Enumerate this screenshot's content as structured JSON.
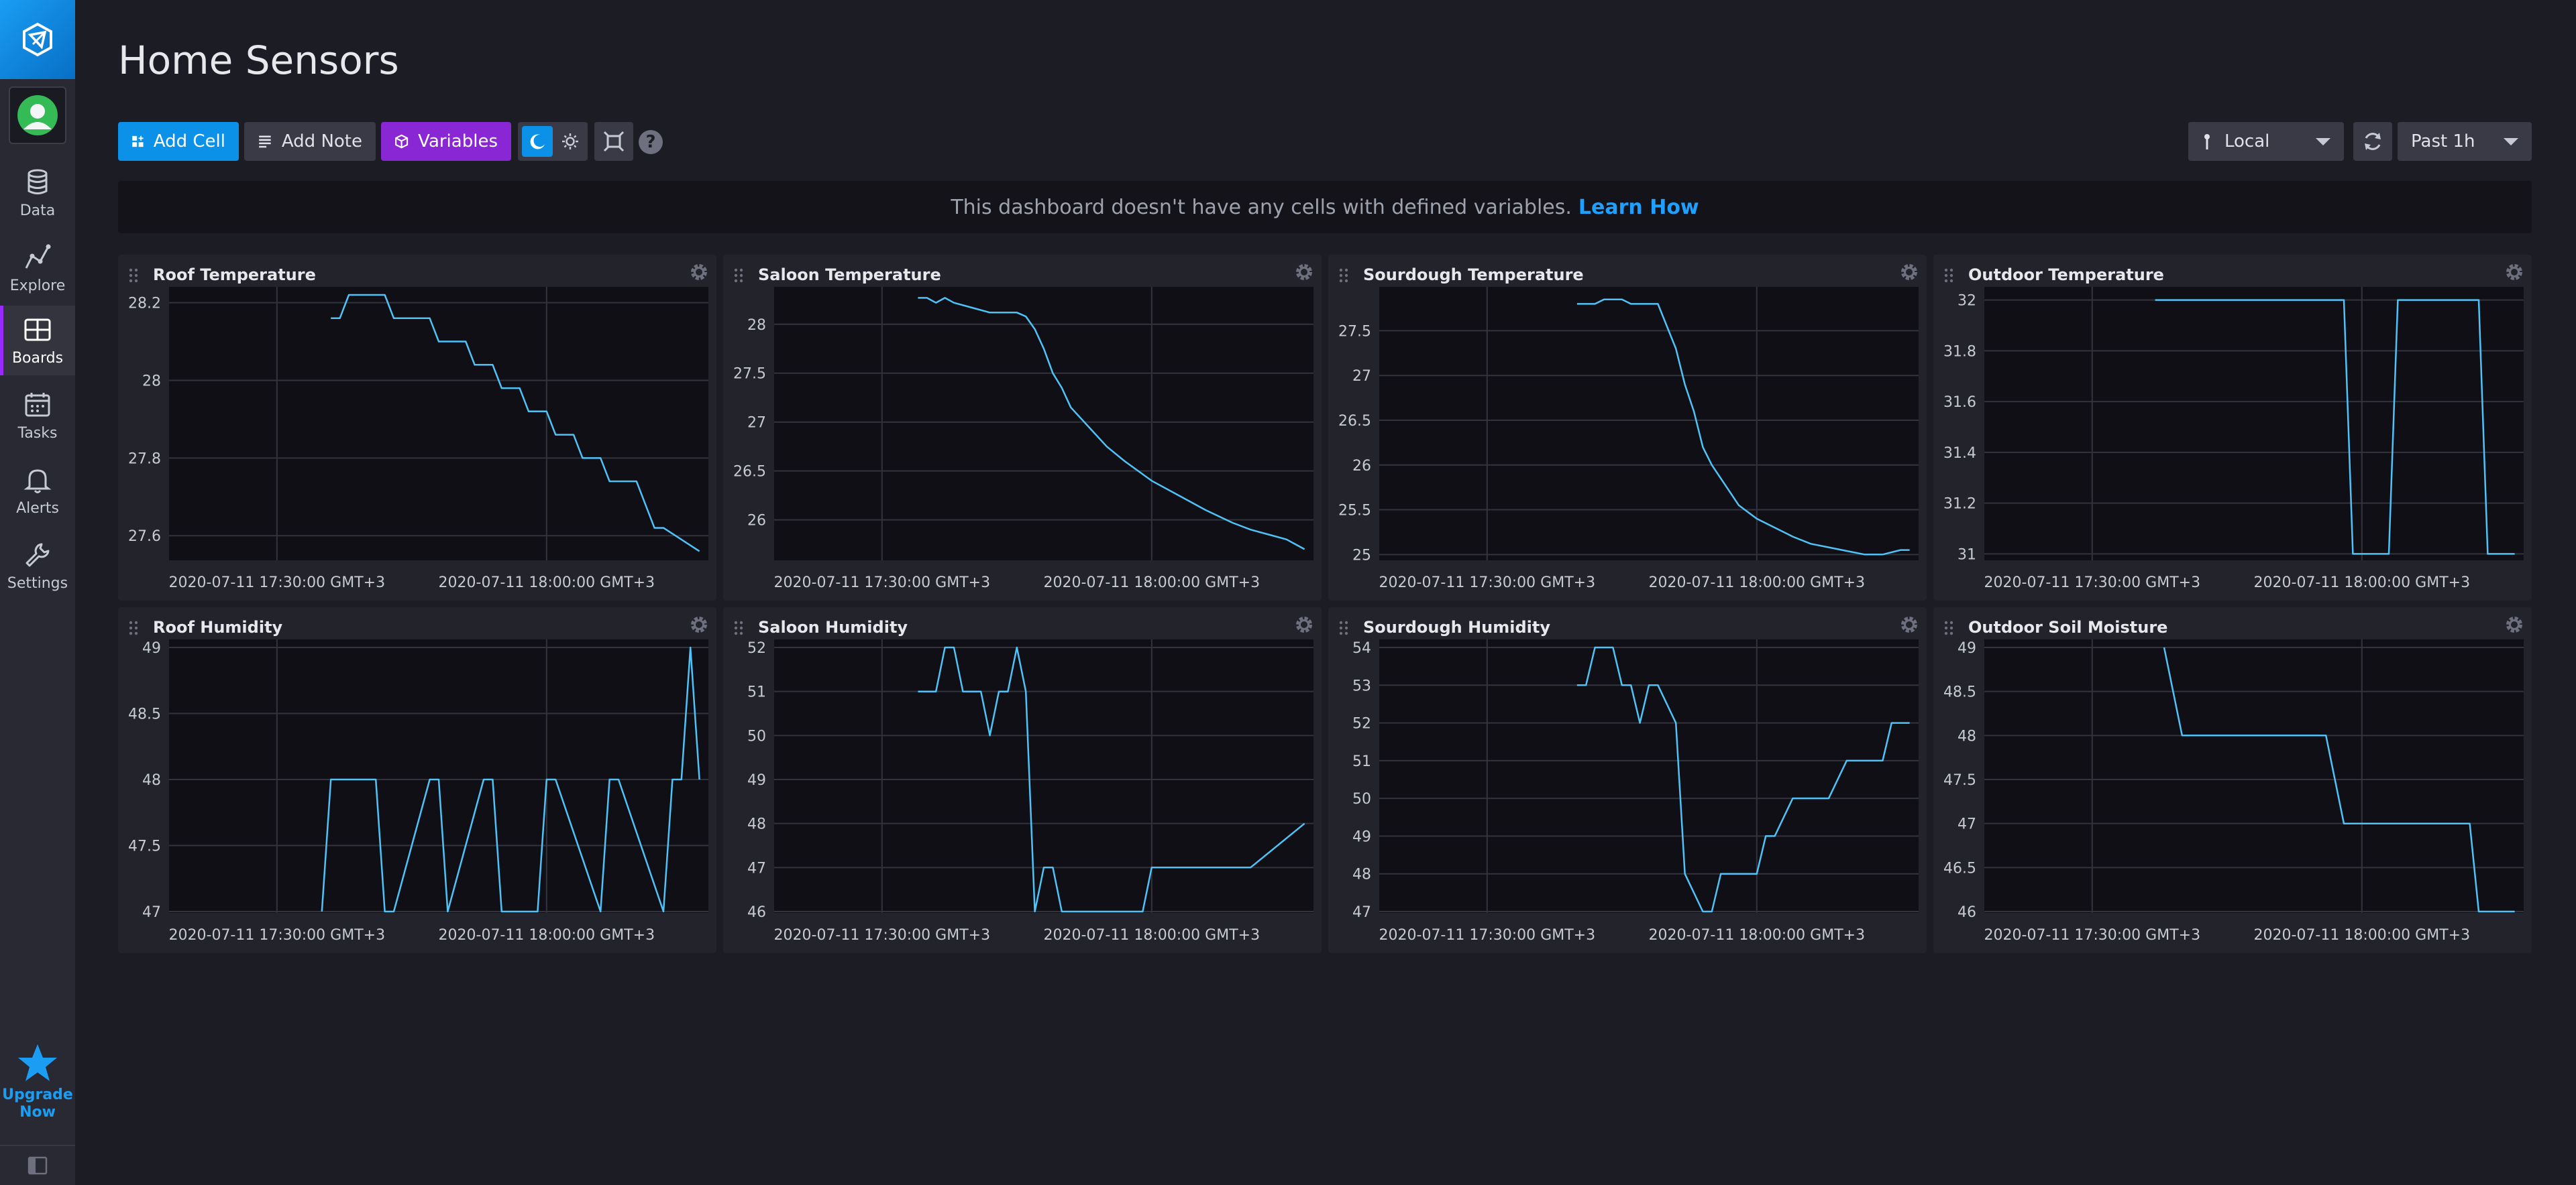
{
  "app": {
    "page_title": "Home Sensors"
  },
  "sidebar": {
    "items": [
      {
        "key": "data",
        "label": "Data",
        "icon": "database-icon"
      },
      {
        "key": "explore",
        "label": "Explore",
        "icon": "graph-icon"
      },
      {
        "key": "boards",
        "label": "Boards",
        "icon": "dashboard-icon",
        "active": true
      },
      {
        "key": "tasks",
        "label": "Tasks",
        "icon": "calendar-icon"
      },
      {
        "key": "alerts",
        "label": "Alerts",
        "icon": "bell-icon"
      },
      {
        "key": "settings",
        "label": "Settings",
        "icon": "wrench-icon"
      }
    ],
    "upgrade_line1": "Upgrade",
    "upgrade_line2": "Now"
  },
  "toolbar": {
    "add_cell": "Add Cell",
    "add_note": "Add Note",
    "variables": "Variables",
    "help": "?",
    "timezone": "Local",
    "time_range": "Past 1h"
  },
  "notice": {
    "text": "This dashboard doesn't have any cells with defined variables.",
    "link": "Learn How"
  },
  "colors": {
    "line": "#4fc3f7",
    "grid": "#33333d",
    "accent_blue": "#0b92e8",
    "accent_purple": "#8a27d4"
  },
  "chart_data": [
    {
      "type": "line",
      "title": "Roof Temperature",
      "x_start": "17:18",
      "x_end": "18:18",
      "xticks": [
        {
          "t": "17:30",
          "label": "2020-07-11 17:30:00 GMT+3"
        },
        {
          "t": "18:00",
          "label": "2020-07-11 18:00:00 GMT+3"
        }
      ],
      "yticks": [
        "28.2",
        "28",
        "27.8",
        "27.6"
      ],
      "ylim": [
        27.54,
        28.22
      ],
      "x": [
        "17:36",
        "17:37",
        "17:38",
        "17:42",
        "17:43",
        "17:47",
        "17:48",
        "17:51",
        "17:52",
        "17:54",
        "17:55",
        "17:57",
        "17:58",
        "18:00",
        "18:01",
        "18:03",
        "18:04",
        "18:06",
        "18:07",
        "18:09",
        "18:10",
        "18:11",
        "18:12",
        "18:13",
        "18:17"
      ],
      "y": [
        28.16,
        28.16,
        28.22,
        28.22,
        28.16,
        28.16,
        28.1,
        28.1,
        28.04,
        28.04,
        27.98,
        27.98,
        27.92,
        27.92,
        27.86,
        27.86,
        27.8,
        27.8,
        27.74,
        27.74,
        27.74,
        27.68,
        27.62,
        27.62,
        27.56
      ]
    },
    {
      "type": "line",
      "title": "Saloon Temperature",
      "x_start": "17:18",
      "x_end": "18:18",
      "xticks": [
        {
          "t": "17:30",
          "label": "2020-07-11 17:30:00 GMT+3"
        },
        {
          "t": "18:00",
          "label": "2020-07-11 18:00:00 GMT+3"
        }
      ],
      "yticks": [
        "28",
        "27.5",
        "27",
        "26.5",
        "26"
      ],
      "ylim": [
        25.6,
        28.3
      ],
      "x": [
        "17:34",
        "17:35",
        "17:36",
        "17:37",
        "17:38",
        "17:40",
        "17:42",
        "17:45",
        "17:46",
        "17:47",
        "17:48",
        "17:49",
        "17:50",
        "17:51",
        "17:53",
        "17:55",
        "17:57",
        "18:00",
        "18:03",
        "18:06",
        "18:09",
        "18:11",
        "18:13",
        "18:15",
        "18:16",
        "18:17"
      ],
      "y": [
        28.27,
        28.27,
        28.22,
        28.27,
        28.22,
        28.17,
        28.12,
        28.12,
        28.08,
        27.95,
        27.75,
        27.5,
        27.35,
        27.15,
        26.95,
        26.75,
        26.6,
        26.4,
        26.25,
        26.1,
        25.97,
        25.9,
        25.85,
        25.8,
        25.75,
        25.7
      ]
    },
    {
      "type": "line",
      "title": "Sourdough Temperature",
      "x_start": "17:18",
      "x_end": "18:18",
      "xticks": [
        {
          "t": "17:30",
          "label": "2020-07-11 17:30:00 GMT+3"
        },
        {
          "t": "18:00",
          "label": "2020-07-11 18:00:00 GMT+3"
        }
      ],
      "yticks": [
        "27.5",
        "27",
        "26.5",
        "26",
        "25.5",
        "25"
      ],
      "ylim": [
        24.95,
        27.9
      ],
      "x": [
        "17:40",
        "17:42",
        "17:43",
        "17:45",
        "17:46",
        "17:48",
        "17:49",
        "17:51",
        "17:52",
        "17:53",
        "17:54",
        "17:55",
        "17:56",
        "17:57",
        "17:58",
        "18:00",
        "18:02",
        "18:04",
        "18:06",
        "18:08",
        "18:10",
        "18:12",
        "18:14",
        "18:16",
        "18:17"
      ],
      "y": [
        27.8,
        27.8,
        27.85,
        27.85,
        27.8,
        27.8,
        27.8,
        27.3,
        26.9,
        26.6,
        26.2,
        26.0,
        25.85,
        25.7,
        25.55,
        25.4,
        25.3,
        25.2,
        25.12,
        25.08,
        25.04,
        25.0,
        25.0,
        25.05,
        25.05
      ]
    },
    {
      "type": "line",
      "title": "Outdoor Temperature",
      "x_start": "17:18",
      "x_end": "18:18",
      "xticks": [
        {
          "t": "17:30",
          "label": "2020-07-11 17:30:00 GMT+3"
        },
        {
          "t": "18:00",
          "label": "2020-07-11 18:00:00 GMT+3"
        }
      ],
      "yticks": [
        "32",
        "31.8",
        "31.6",
        "31.4",
        "31.2",
        "31"
      ],
      "ylim": [
        30.98,
        32.02
      ],
      "x": [
        "17:37",
        "17:58",
        "17:59",
        "18:03",
        "18:04",
        "18:13",
        "18:14",
        "18:17"
      ],
      "y": [
        32,
        32,
        31,
        31,
        32,
        32,
        31,
        31
      ]
    },
    {
      "type": "line",
      "title": "Roof Humidity",
      "x_start": "17:18",
      "x_end": "18:18",
      "xticks": [
        {
          "t": "17:30",
          "label": "2020-07-11 17:30:00 GMT+3"
        },
        {
          "t": "18:00",
          "label": "2020-07-11 18:00:00 GMT+3"
        }
      ],
      "yticks": [
        "49",
        "48.5",
        "48",
        "47.5",
        "47"
      ],
      "ylim": [
        47,
        49
      ],
      "x": [
        "17:35",
        "17:36",
        "17:41",
        "17:42",
        "17:43",
        "17:47",
        "17:48",
        "17:49",
        "17:53",
        "17:54",
        "17:55",
        "17:59",
        "18:00",
        "18:01",
        "18:06",
        "18:07",
        "18:08",
        "18:13",
        "18:14",
        "18:15",
        "18:16",
        "18:17"
      ],
      "y": [
        47,
        48,
        48,
        47,
        47,
        48,
        48,
        47,
        48,
        48,
        47,
        47,
        48,
        48,
        47,
        48,
        48,
        47,
        48,
        48,
        49,
        48
      ]
    },
    {
      "type": "line",
      "title": "Saloon Humidity",
      "x_start": "17:18",
      "x_end": "18:18",
      "xticks": [
        {
          "t": "17:30",
          "label": "2020-07-11 17:30:00 GMT+3"
        },
        {
          "t": "18:00",
          "label": "2020-07-11 18:00:00 GMT+3"
        }
      ],
      "yticks": [
        "52",
        "51",
        "50",
        "49",
        "48",
        "47",
        "46"
      ],
      "ylim": [
        46,
        52
      ],
      "x": [
        "17:34",
        "17:36",
        "17:37",
        "17:38",
        "17:39",
        "17:41",
        "17:42",
        "17:43",
        "17:44",
        "17:45",
        "17:46",
        "17:47",
        "17:48",
        "17:49",
        "17:50",
        "17:51",
        "17:55",
        "17:59",
        "18:00",
        "18:11",
        "18:17"
      ],
      "y": [
        51,
        51,
        52,
        52,
        51,
        51,
        50,
        51,
        51,
        52,
        51,
        46,
        47,
        47,
        46,
        46,
        46,
        46,
        47,
        47,
        48
      ]
    },
    {
      "type": "line",
      "title": "Sourdough Humidity",
      "x_start": "17:18",
      "x_end": "18:18",
      "xticks": [
        {
          "t": "17:30",
          "label": "2020-07-11 17:30:00 GMT+3"
        },
        {
          "t": "18:00",
          "label": "2020-07-11 18:00:00 GMT+3"
        }
      ],
      "yticks": [
        "54",
        "53",
        "52",
        "51",
        "50",
        "49",
        "48",
        "47"
      ],
      "ylim": [
        47,
        54
      ],
      "x": [
        "17:40",
        "17:41",
        "17:42",
        "17:44",
        "17:45",
        "17:46",
        "17:47",
        "17:48",
        "17:49",
        "17:51",
        "17:52",
        "17:54",
        "17:55",
        "17:56",
        "17:57",
        "18:00",
        "18:01",
        "18:02",
        "18:04",
        "18:07",
        "18:08",
        "18:10",
        "18:11",
        "18:14",
        "18:15",
        "18:16",
        "18:17"
      ],
      "y": [
        53,
        53,
        54,
        54,
        53,
        53,
        52,
        53,
        53,
        52,
        48,
        47,
        47,
        48,
        48,
        48,
        49,
        49,
        50,
        50,
        50,
        51,
        51,
        51,
        52,
        52,
        52
      ]
    },
    {
      "type": "line",
      "title": "Outdoor Soil Moisture",
      "x_start": "17:18",
      "x_end": "18:18",
      "xticks": [
        {
          "t": "17:30",
          "label": "2020-07-11 17:30:00 GMT+3"
        },
        {
          "t": "18:00",
          "label": "2020-07-11 18:00:00 GMT+3"
        }
      ],
      "yticks": [
        "49",
        "48.5",
        "48",
        "47.5",
        "47",
        "46.5",
        "46"
      ],
      "ylim": [
        46,
        49
      ],
      "x": [
        "17:38",
        "17:40",
        "17:56",
        "17:58",
        "18:06",
        "18:12",
        "18:13",
        "18:17"
      ],
      "y": [
        49,
        48,
        48,
        47,
        47,
        47,
        46,
        46
      ]
    }
  ]
}
